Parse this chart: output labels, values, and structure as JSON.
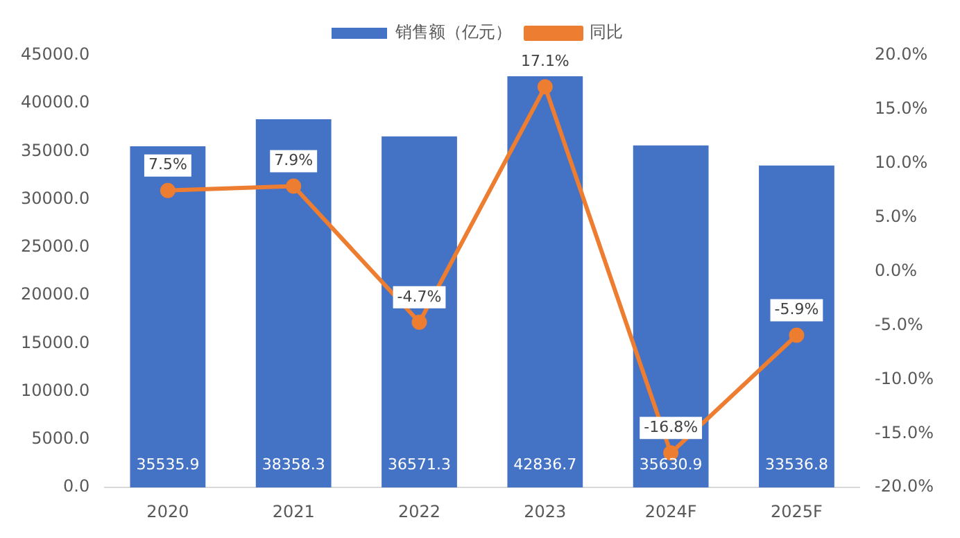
{
  "chart_data": {
    "type": "bar",
    "categories": [
      "2020",
      "2021",
      "2022",
      "2023",
      "2024F",
      "2025F"
    ],
    "series": [
      {
        "name": "销售额（亿元）",
        "color": "#4472c4",
        "values": [
          35535.9,
          38358.3,
          36571.3,
          42836.7,
          35630.9,
          33536.8
        ],
        "value_labels": [
          "35535.9",
          "38358.3",
          "36571.3",
          "42836.7",
          "35630.9",
          "33536.8"
        ]
      },
      {
        "name": "同比",
        "type": "line",
        "axis": "y2",
        "color": "#ed7d31",
        "marker": "circle",
        "values": [
          7.5,
          7.9,
          -4.7,
          17.1,
          -16.8,
          -5.9
        ],
        "value_labels": [
          "7.5%",
          "7.9%",
          "-4.7%",
          "17.1%",
          "-16.8%",
          "-5.9%"
        ]
      }
    ],
    "ylim": [
      0,
      45000
    ],
    "yticks": [
      {
        "value": 0,
        "label": "0.0"
      },
      {
        "value": 5000,
        "label": "5000.0"
      },
      {
        "value": 10000,
        "label": "10000.0"
      },
      {
        "value": 15000,
        "label": "15000.0"
      },
      {
        "value": 20000,
        "label": "20000.0"
      },
      {
        "value": 25000,
        "label": "25000.0"
      },
      {
        "value": 30000,
        "label": "30000.0"
      },
      {
        "value": 35000,
        "label": "35000.0"
      },
      {
        "value": 40000,
        "label": "40000.0"
      },
      {
        "value": 45000,
        "label": "45000.0"
      }
    ],
    "y2lim": [
      -20,
      20
    ],
    "y2ticks": [
      {
        "value": -20,
        "label": "-20.0%"
      },
      {
        "value": -15,
        "label": "-15.0%"
      },
      {
        "value": -10,
        "label": "-10.0%"
      },
      {
        "value": -5,
        "label": "-5.0%"
      },
      {
        "value": 0,
        "label": "0.0%"
      },
      {
        "value": 5,
        "label": "5.0%"
      },
      {
        "value": 10,
        "label": "10.0%"
      },
      {
        "value": 15,
        "label": "15.0%"
      },
      {
        "value": 20,
        "label": "20.0%"
      }
    ],
    "grid": false,
    "legend": "top"
  }
}
